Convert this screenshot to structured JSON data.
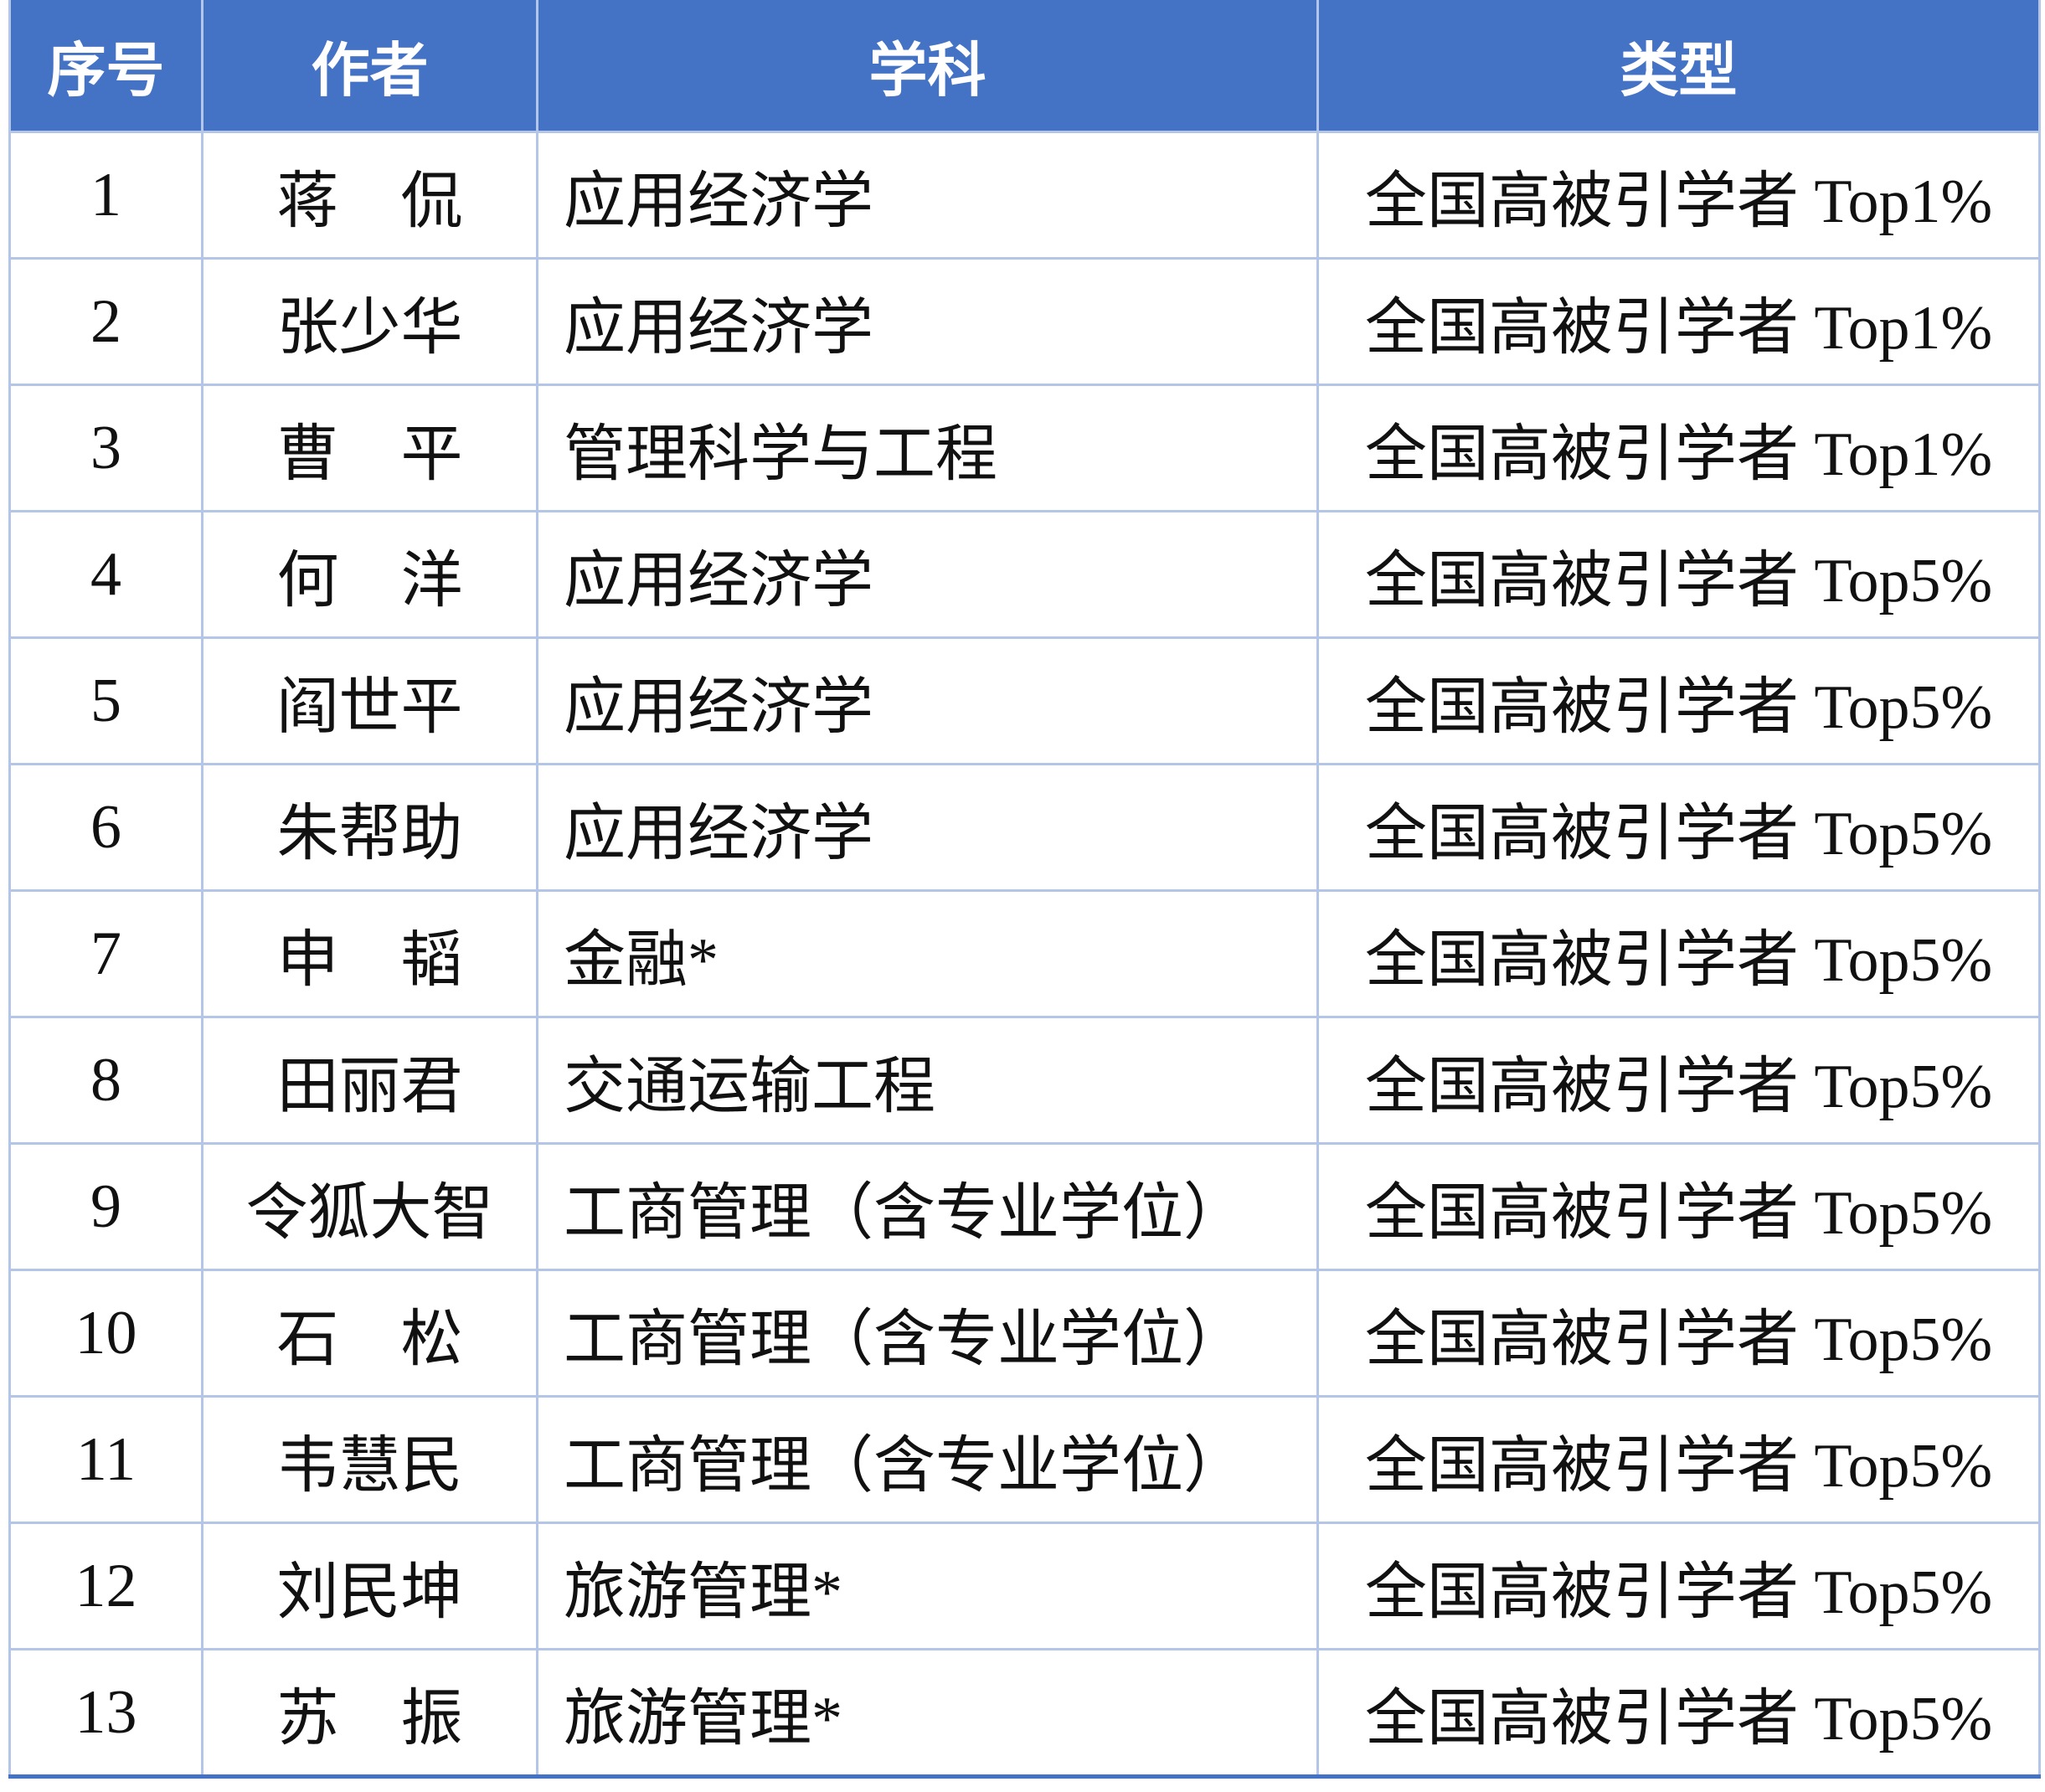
{
  "header": {
    "no": "序号",
    "author": "作者",
    "subject": "学科",
    "type": "类型"
  },
  "colors": {
    "header_bg": "#4472c4",
    "header_text": "#ffffff",
    "grid": "#b4c6e7"
  },
  "rows": [
    {
      "no": "1",
      "author": "蒋　侃",
      "subject": "应用经济学",
      "type": "全国高被引学者 Top1%"
    },
    {
      "no": "2",
      "author": "张少华",
      "subject": "应用经济学",
      "type": "全国高被引学者 Top1%"
    },
    {
      "no": "3",
      "author": "曹　平",
      "subject": "管理科学与工程",
      "type": "全国高被引学者 Top1%"
    },
    {
      "no": "4",
      "author": "何　洋",
      "subject": "应用经济学",
      "type": "全国高被引学者 Top5%"
    },
    {
      "no": "5",
      "author": "阎世平",
      "subject": "应用经济学",
      "type": "全国高被引学者 Top5%"
    },
    {
      "no": "6",
      "author": "朱帮助",
      "subject": "应用经济学",
      "type": "全国高被引学者 Top5%"
    },
    {
      "no": "7",
      "author": "申　韬",
      "subject": "金融*",
      "type": "全国高被引学者 Top5%"
    },
    {
      "no": "8",
      "author": "田丽君",
      "subject": "交通运输工程",
      "type": "全国高被引学者 Top5%"
    },
    {
      "no": "9",
      "author": "令狐大智",
      "subject": "工商管理（含专业学位）",
      "type": "全国高被引学者 Top5%"
    },
    {
      "no": "10",
      "author": "石　松",
      "subject": "工商管理（含专业学位）",
      "type": "全国高被引学者 Top5%"
    },
    {
      "no": "11",
      "author": "韦慧民",
      "subject": "工商管理（含专业学位）",
      "type": "全国高被引学者 Top5%"
    },
    {
      "no": "12",
      "author": "刘民坤",
      "subject": "旅游管理*",
      "type": "全国高被引学者 Top5%"
    },
    {
      "no": "13",
      "author": "苏　振",
      "subject": "旅游管理*",
      "type": "全国高被引学者 Top5%"
    }
  ]
}
